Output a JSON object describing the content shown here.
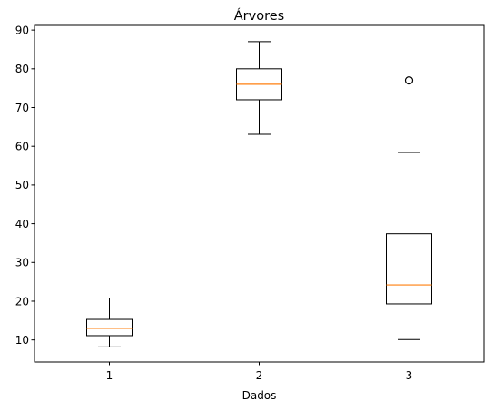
{
  "chart_data": {
    "type": "box",
    "title": "Árvores",
    "xlabel": "Dados",
    "ylabel": "",
    "ylim": [
      4.3,
      91.2
    ],
    "yticks": [
      10,
      20,
      30,
      40,
      50,
      60,
      70,
      80,
      90
    ],
    "grid": false,
    "categories": [
      "1",
      "2",
      "3"
    ],
    "boxes": [
      {
        "whisker_low": 8.2,
        "q1": 11.1,
        "median": 13.0,
        "q3": 15.3,
        "whisker_high": 20.8,
        "outliers": []
      },
      {
        "whisker_low": 63.1,
        "q1": 72.0,
        "median": 76.0,
        "q3": 80.0,
        "whisker_high": 87.0,
        "outliers": []
      },
      {
        "whisker_low": 10.1,
        "q1": 19.3,
        "median": 24.2,
        "q3": 37.4,
        "whisker_high": 58.4,
        "outliers": [
          77.0
        ]
      }
    ],
    "colors": {
      "box": "#000000",
      "median": "#ff7f0e",
      "background": "#ffffff"
    }
  }
}
